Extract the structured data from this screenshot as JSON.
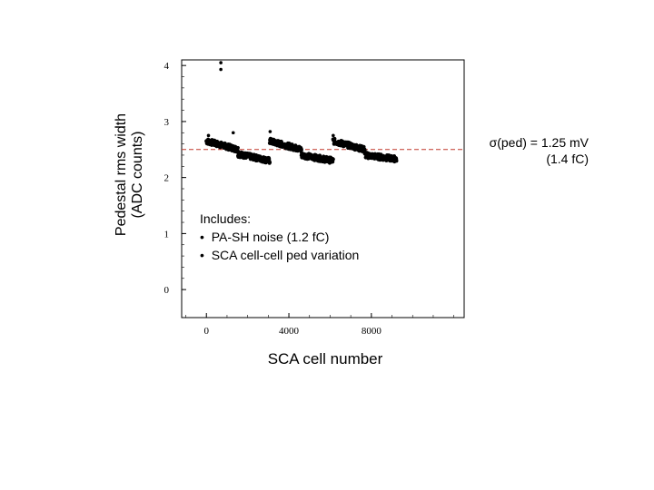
{
  "chart_data": {
    "type": "scatter",
    "title": "",
    "xlabel": "SCA cell number",
    "ylabel_lines": [
      "Pedestal rms width",
      "(ADC counts)"
    ],
    "xlim": [
      -1200,
      12500
    ],
    "ylim": [
      -0.5,
      4.1
    ],
    "x_ticks": [
      "0",
      "4000",
      "8000"
    ],
    "x_tick_values": [
      0,
      4000,
      8000
    ],
    "y_ticks": [
      "0",
      "1",
      "2",
      "3",
      "4"
    ],
    "y_tick_values": [
      0,
      1,
      2,
      3,
      4
    ],
    "grid": false,
    "reference_line": {
      "y": 2.5,
      "color": "#c0392b",
      "style": "dashed"
    },
    "marker_color": "#000000",
    "segments": [
      {
        "x_start": 0,
        "x_end": 1536,
        "start": 2.65,
        "end": 2.5,
        "noise": 0.05
      },
      {
        "x_start": 1536,
        "x_end": 3072,
        "start": 2.42,
        "end": 2.3,
        "noise": 0.05
      },
      {
        "x_start": 3072,
        "x_end": 4608,
        "start": 2.65,
        "end": 2.5,
        "noise": 0.05
      },
      {
        "x_start": 4608,
        "x_end": 6144,
        "start": 2.4,
        "end": 2.3,
        "noise": 0.05
      },
      {
        "x_start": 6144,
        "x_end": 7680,
        "start": 2.65,
        "end": 2.5,
        "noise": 0.05
      },
      {
        "x_start": 7680,
        "x_end": 9216,
        "start": 2.4,
        "end": 2.33,
        "noise": 0.05
      }
    ],
    "outliers": [
      {
        "x": 700,
        "y": 4.05
      },
      {
        "x": 700,
        "y": 3.93
      },
      {
        "x": 100,
        "y": 2.75
      },
      {
        "x": 1300,
        "y": 2.8
      },
      {
        "x": 3090,
        "y": 2.82
      },
      {
        "x": 6150,
        "y": 2.75
      }
    ]
  },
  "annotation": {
    "sigma_line": "σ(ped) = 1.25 mV",
    "fc_line": "(1.4 fC)"
  },
  "includes": {
    "heading": "Includes:",
    "items": [
      "PA-SH noise (1.2 fC)",
      "SCA cell-cell ped variation"
    ]
  }
}
